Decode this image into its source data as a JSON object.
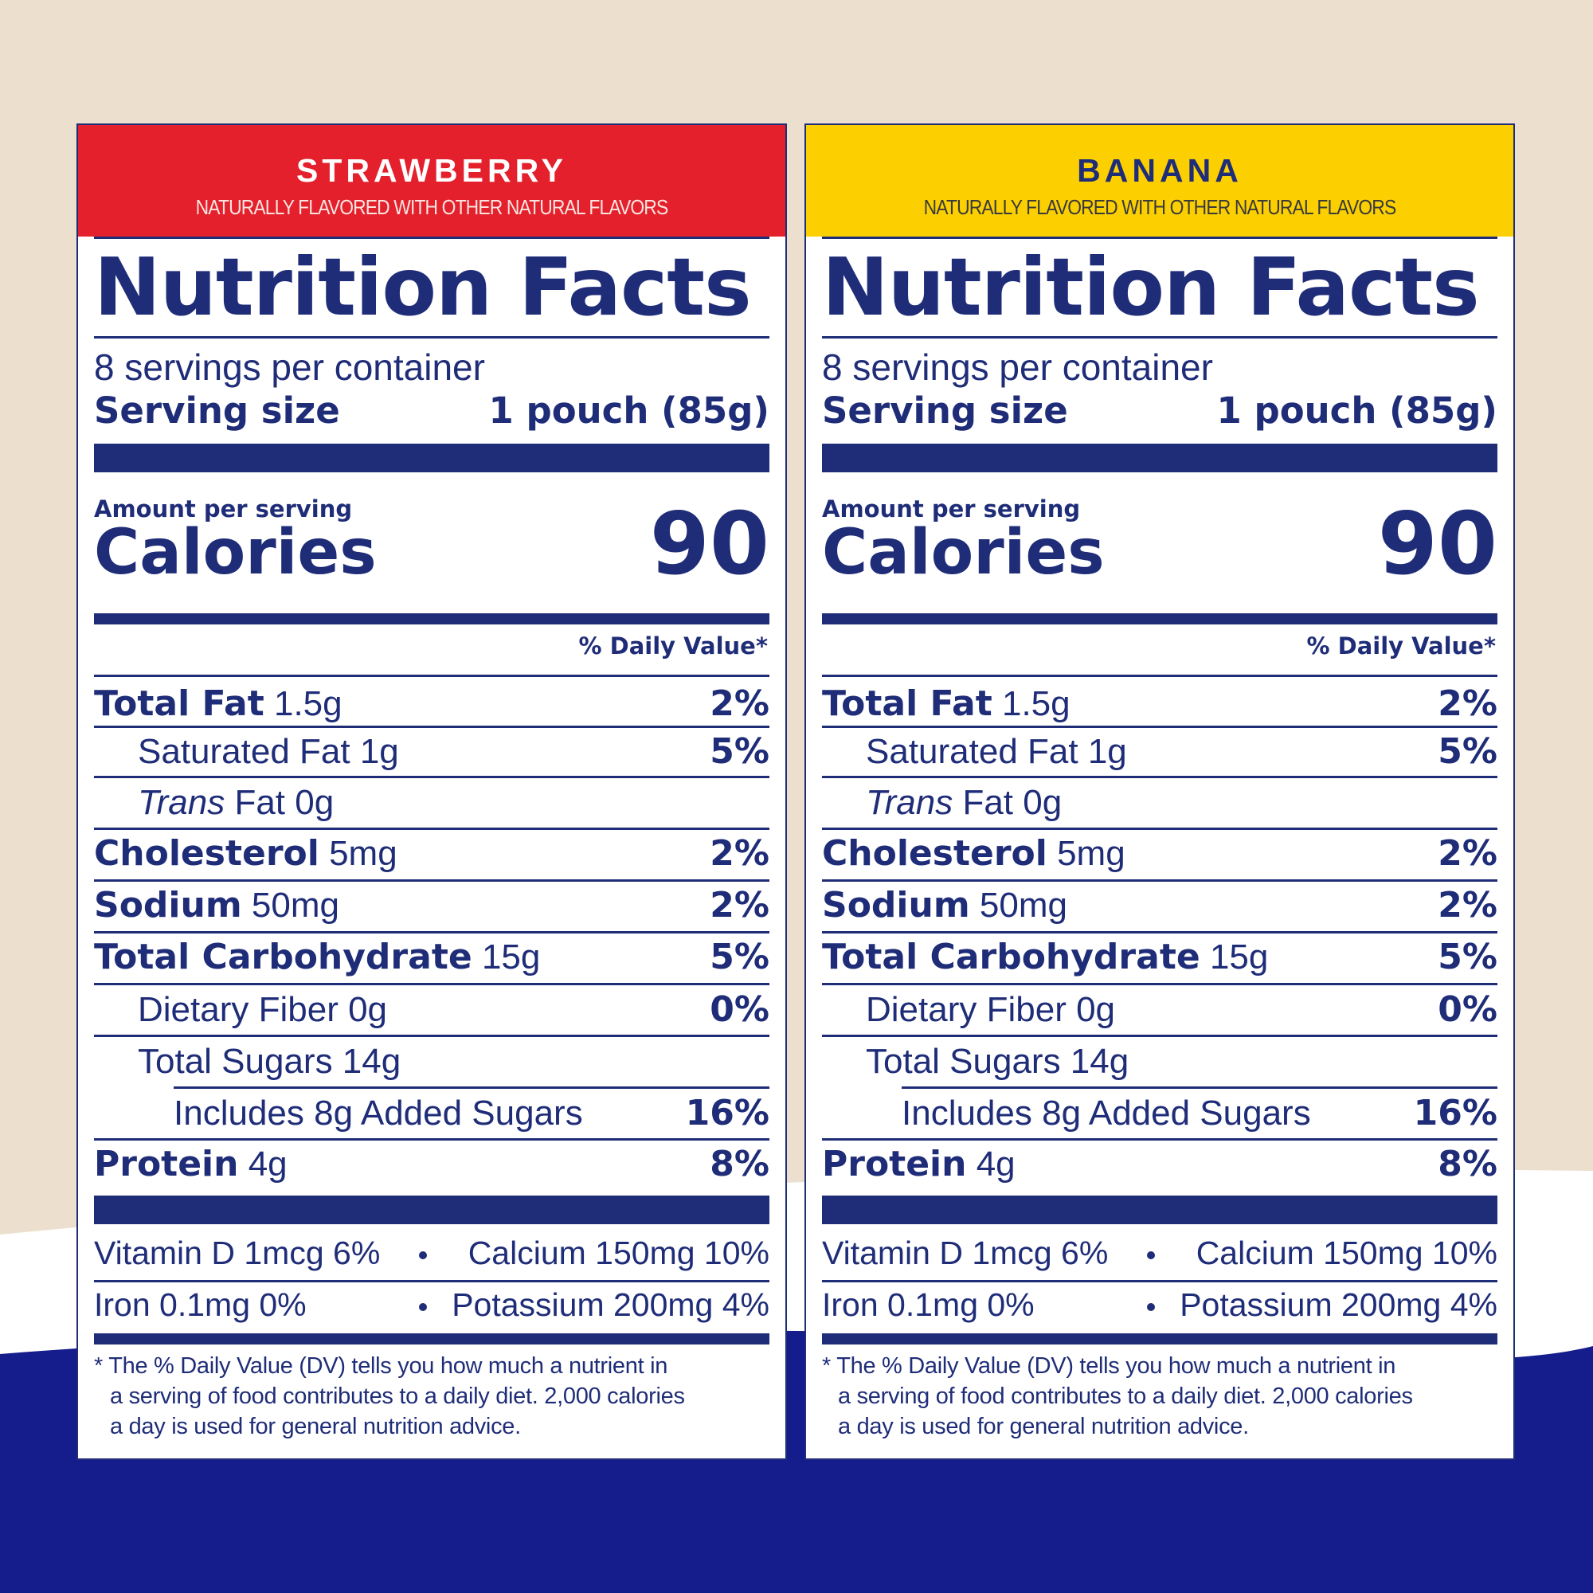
{
  "colors": {
    "background_beige": "#ecdfcd",
    "background_navy": "#151c8c",
    "ink": "#1f2d78",
    "strawberry_red": "#e3202b",
    "banana_yellow": "#fcd000"
  },
  "panels": [
    {
      "flavor": "STRAWBERRY",
      "flavor_note": "NATURALLY FLAVORED WITH  OTHER NATURAL FLAVORS",
      "title": "Nutrition Facts",
      "servings": "8 servings per container",
      "serving_size_label": "Serving size",
      "serving_size_value": "1 pouch (85g)",
      "amount_per_serving": "Amount per serving",
      "calories_label": "Calories",
      "calories_value": "90",
      "dv_header": "% Daily Value*",
      "nutrients": [
        {
          "name": "Total Fat",
          "amount": "1.5g",
          "dv": "2%"
        },
        {
          "name": "Saturated Fat 1g",
          "amount": "",
          "dv": "5%"
        },
        {
          "name": "Trans",
          "amount": "Fat 0g",
          "dv": ""
        },
        {
          "name": "Cholesterol",
          "amount": "5mg",
          "dv": "2%"
        },
        {
          "name": "Sodium",
          "amount": "50mg",
          "dv": "2%"
        },
        {
          "name": "Total Carbohydrate",
          "amount": "15g",
          "dv": "5%"
        },
        {
          "name": "Dietary Fiber 0g",
          "amount": "",
          "dv": "0%"
        },
        {
          "name": "Total Sugars 14g",
          "amount": "",
          "dv": ""
        },
        {
          "name": "Includes 8g Added Sugars",
          "amount": "",
          "dv": "16%"
        },
        {
          "name": "Protein",
          "amount": "4g",
          "dv": "8%"
        }
      ],
      "vitamins": [
        {
          "left": "Vitamin D 1mcg 6%",
          "right": "Calcium 150mg 10%"
        },
        {
          "left": "Iron 0.1mg 0%",
          "right": "Potassium 200mg 4%"
        }
      ],
      "footnote": [
        "* The % Daily Value (DV) tells you how much a nutrient in",
        "a serving of food contributes to a daily diet. 2,000 calories",
        "a day is used for general nutrition advice."
      ]
    },
    {
      "flavor": "BANANA",
      "flavor_note": "NATURALLY FLAVORED WITH  OTHER NATURAL FLAVORS",
      "title": "Nutrition Facts",
      "servings": "8 servings per container",
      "serving_size_label": "Serving size",
      "serving_size_value": "1 pouch (85g)",
      "amount_per_serving": "Amount per serving",
      "calories_label": "Calories",
      "calories_value": "90",
      "dv_header": "% Daily Value*",
      "nutrients": [
        {
          "name": "Total Fat",
          "amount": "1.5g",
          "dv": "2%"
        },
        {
          "name": "Saturated Fat 1g",
          "amount": "",
          "dv": "5%"
        },
        {
          "name": "Trans",
          "amount": "Fat 0g",
          "dv": ""
        },
        {
          "name": "Cholesterol",
          "amount": "5mg",
          "dv": "2%"
        },
        {
          "name": "Sodium",
          "amount": "50mg",
          "dv": "2%"
        },
        {
          "name": "Total Carbohydrate",
          "amount": "15g",
          "dv": "5%"
        },
        {
          "name": "Dietary Fiber 0g",
          "amount": "",
          "dv": "0%"
        },
        {
          "name": "Total Sugars 14g",
          "amount": "",
          "dv": ""
        },
        {
          "name": "Includes 8g Added Sugars",
          "amount": "",
          "dv": "16%"
        },
        {
          "name": "Protein",
          "amount": "4g",
          "dv": "8%"
        }
      ],
      "vitamins": [
        {
          "left": "Vitamin D 1mcg 6%",
          "right": "Calcium 150mg 10%"
        },
        {
          "left": "Iron 0.1mg 0%",
          "right": "Potassium 200mg 4%"
        }
      ],
      "footnote": [
        "* The % Daily Value (DV) tells you how much a nutrient in",
        "a serving of food contributes to a daily diet. 2,000 calories",
        "a day is used for general nutrition advice."
      ]
    }
  ]
}
